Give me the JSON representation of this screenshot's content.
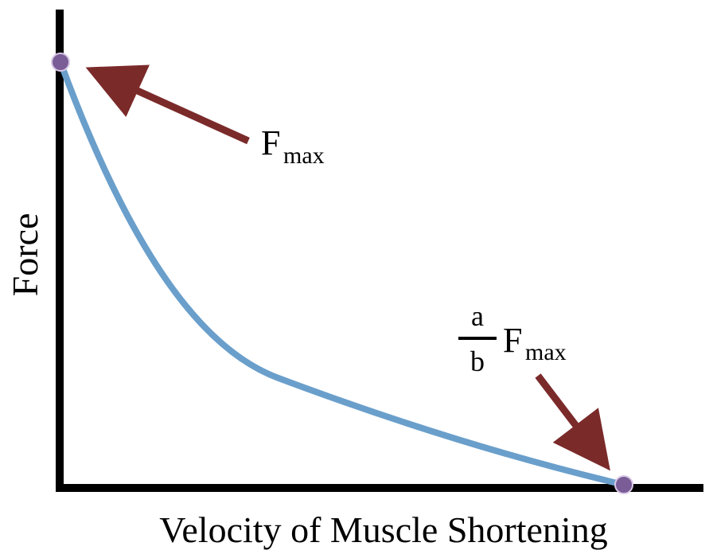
{
  "axes": {
    "x_label": "Velocity of Muscle Shortening",
    "y_label": "Force"
  },
  "annotations": {
    "fmax": {
      "main": "F",
      "subscript": "max"
    },
    "ratio_fmax": {
      "numerator": "a",
      "denominator": "b",
      "main": "F",
      "subscript": "max"
    }
  },
  "colors": {
    "axis": "#000000",
    "curve": "#6a9fcb",
    "arrow": "#7b2a2a",
    "point_fill": "#7a5d96",
    "point_stroke": "#d9c9e6"
  }
}
